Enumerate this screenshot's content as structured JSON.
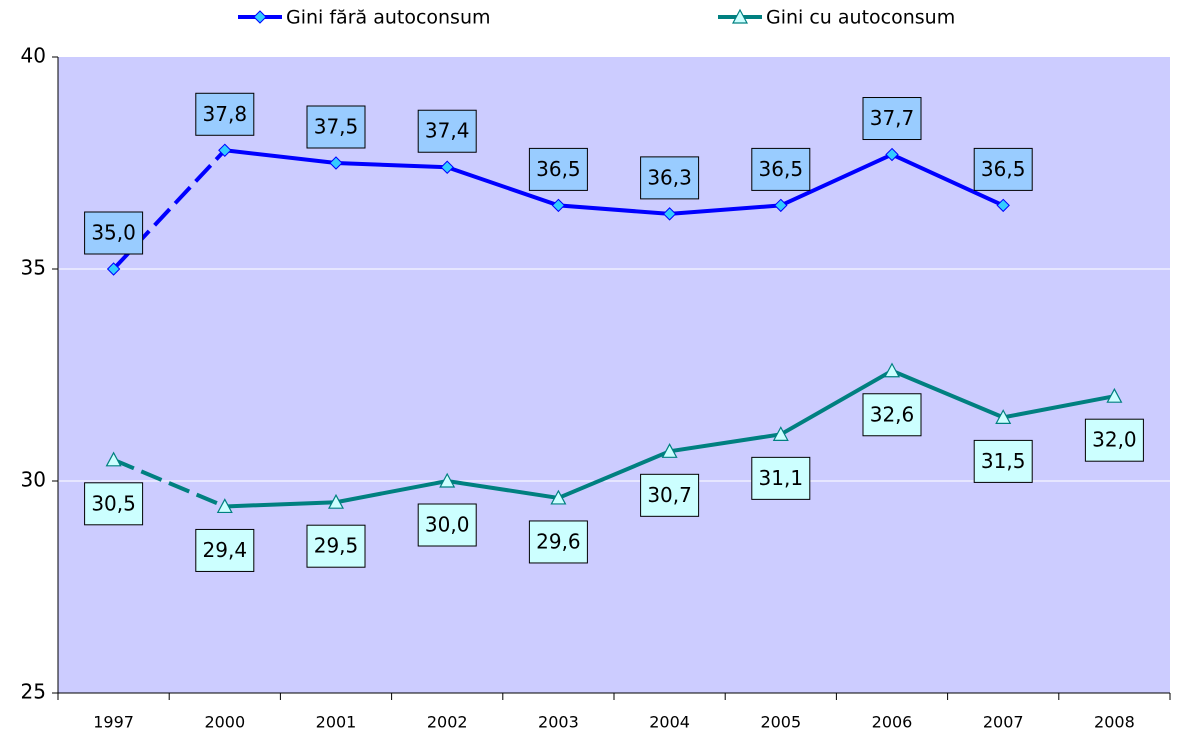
{
  "chart_data": {
    "type": "line",
    "categories": [
      "1997",
      "2000",
      "2001",
      "2002",
      "2003",
      "2004",
      "2005",
      "2006",
      "2007",
      "2008"
    ],
    "series": [
      {
        "name": "Gini fără autoconsum",
        "color": "#0000ff",
        "marker": "diamond",
        "marker_color": "#33ccff",
        "label_color": "#99ccff",
        "values": [
          35.0,
          37.8,
          37.5,
          37.4,
          36.5,
          36.3,
          36.5,
          37.7,
          36.5,
          null
        ],
        "value_labels": [
          "35,0",
          "37,8",
          "37,5",
          "37,4",
          "36,5",
          "36,3",
          "36,5",
          "37,7",
          "36,5",
          null
        ]
      },
      {
        "name": "Gini cu autoconsum",
        "color": "#008080",
        "marker": "triangle",
        "marker_color": "#ccffff",
        "label_color": "#ccffff",
        "values": [
          30.5,
          29.4,
          29.5,
          30.0,
          29.6,
          30.7,
          31.1,
          32.6,
          31.5,
          32.0
        ],
        "value_labels": [
          "30,5",
          "29,4",
          "29,5",
          "30,0",
          "29,6",
          "30,7",
          "31,1",
          "32,6",
          "31,5",
          "32,0"
        ]
      }
    ],
    "ylim": [
      25,
      40
    ],
    "yticks": [
      25,
      30,
      35,
      40
    ],
    "grid": true,
    "legend": "top"
  }
}
